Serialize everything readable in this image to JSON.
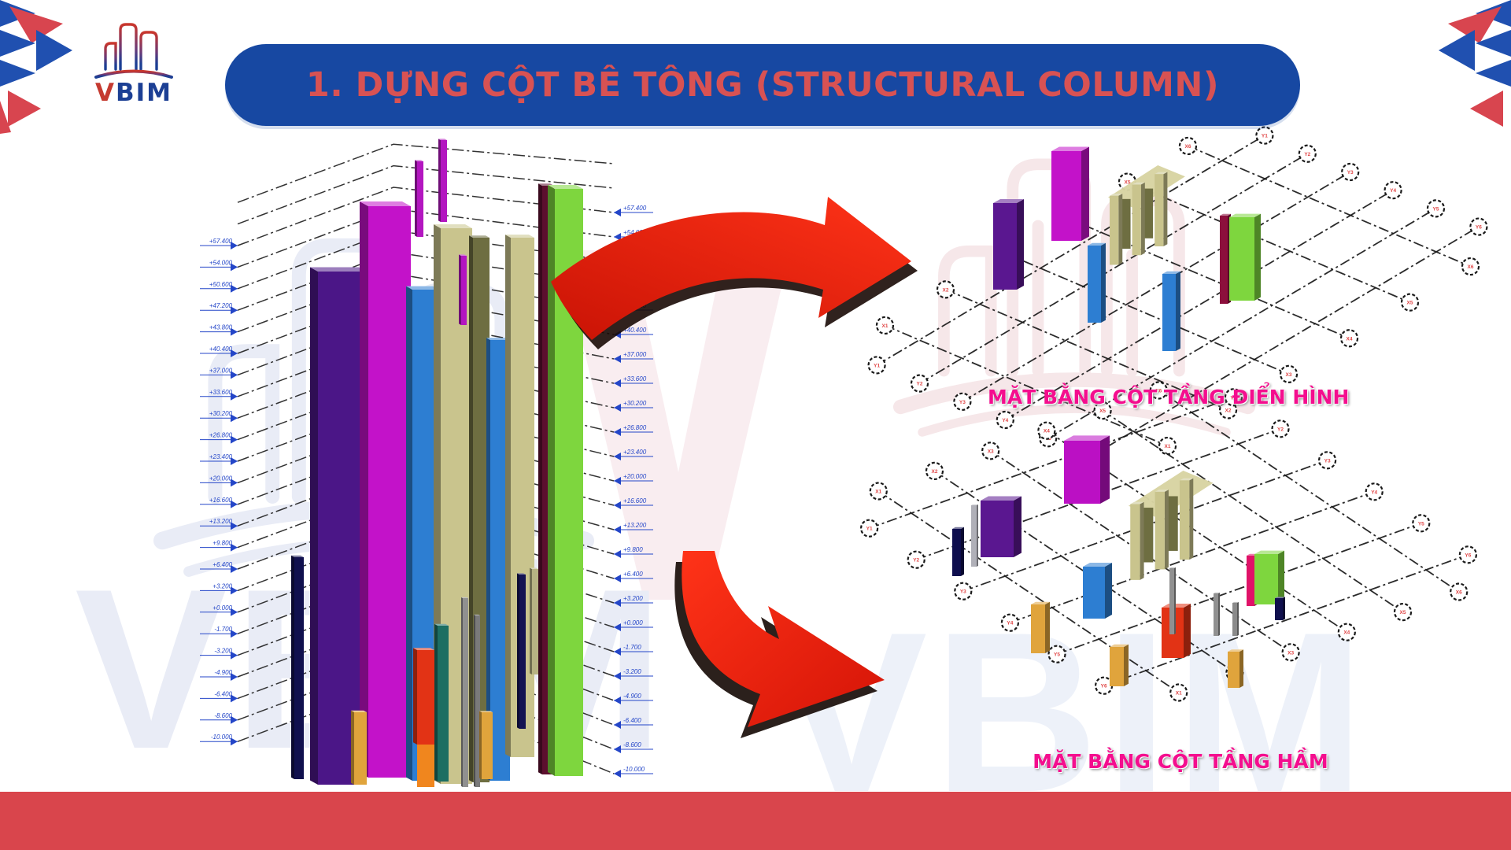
{
  "slide": {
    "title": "1. DỰNG CỘT BÊ TÔNG (STRUCTURAL COLUMN)",
    "logo_text": "VBIM",
    "watermark_text": "VBIM"
  },
  "captions": {
    "typical": "MẶT BẰNG CỘT TẦNG ĐIỂN HÌNH",
    "basement": "MẶT BẰNG CỘT TẦNG HẦM"
  },
  "left_view": {
    "levels": [
      "+57.400",
      "+54.000",
      "+50.600",
      "+47.200",
      "+43.800",
      "+40.400",
      "+37.000",
      "+33.600",
      "+30.200",
      "+26.800",
      "+23.400",
      "+20.000",
      "+16.600",
      "+13.200",
      "+9.800",
      "+6.400",
      "+3.200",
      "+0.000",
      "-1.700",
      "-3.200",
      "-4.900",
      "-6.400",
      "-8.600",
      "-10.000"
    ]
  },
  "grids": {
    "x_labels": [
      "X1",
      "X2",
      "X3",
      "X4",
      "X5",
      "X6"
    ],
    "y_labels": [
      "Y1",
      "Y2",
      "Y3",
      "Y4",
      "Y5",
      "Y6"
    ]
  },
  "colors": {
    "banner_blue": "#1748A2",
    "title_red": "#D85253",
    "footer_red": "#D9454C",
    "caption_pink": "#F40E8E",
    "arrow_red": "#E8220F",
    "level_blue": "#2446C8",
    "grid_label_red": "#E04545"
  }
}
